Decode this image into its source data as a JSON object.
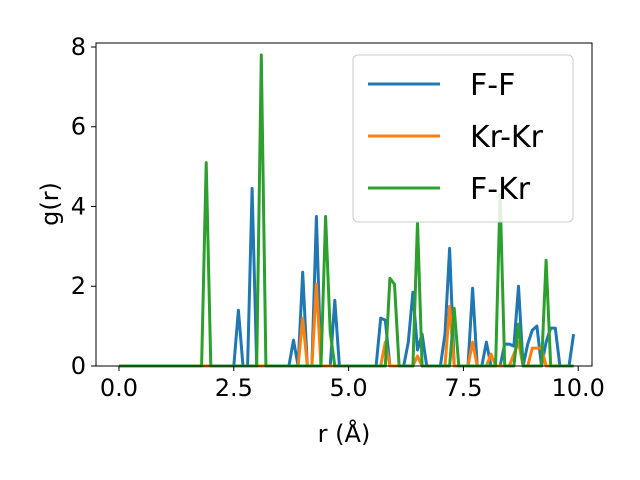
{
  "chart_data": {
    "type": "line",
    "xlabel": "r (Å)",
    "ylabel": "g(r)",
    "xlim": [
      -0.5,
      10.3
    ],
    "ylim": [
      0,
      8.1
    ],
    "xticks": [
      0.0,
      2.5,
      5.0,
      7.5,
      10.0
    ],
    "xtick_labels": [
      "0.0",
      "2.5",
      "5.0",
      "7.5",
      "10.0"
    ],
    "yticks": [
      0,
      2,
      4,
      6,
      8
    ],
    "ytick_labels": [
      "0",
      "2",
      "4",
      "6",
      "8"
    ],
    "grid": false,
    "legend_position": "top-right",
    "series": [
      {
        "name": "F-F",
        "color": "#1f77b4",
        "x": [
          0.0,
          2.5,
          2.6,
          2.7,
          2.8,
          2.9,
          3.0,
          3.7,
          3.8,
          3.9,
          4.0,
          4.1,
          4.2,
          4.3,
          4.4,
          4.5,
          4.6,
          4.7,
          4.8,
          4.9,
          5.6,
          5.7,
          5.8,
          5.9,
          6.2,
          6.3,
          6.4,
          6.5,
          6.6,
          6.7,
          6.8,
          6.9,
          7.0,
          7.1,
          7.2,
          7.3,
          7.4,
          7.5,
          7.6,
          7.7,
          7.8,
          7.9,
          8.0,
          8.1,
          8.2,
          8.3,
          8.4,
          8.5,
          8.6,
          8.7,
          8.8,
          8.9,
          9.0,
          9.1,
          9.2,
          9.3,
          9.4,
          9.5,
          9.6,
          9.7,
          9.8,
          9.9
        ],
        "y": [
          0,
          0,
          1.4,
          0,
          0,
          4.45,
          0,
          0,
          0.65,
          0,
          2.35,
          0,
          0,
          3.75,
          0,
          0,
          0,
          1.65,
          0,
          0,
          0,
          1.2,
          1.15,
          0,
          0,
          0.6,
          1.85,
          0.4,
          0.8,
          0,
          0,
          0,
          0,
          0.8,
          2.95,
          0,
          0,
          0,
          0,
          1.95,
          0,
          0,
          0.6,
          0,
          0,
          0,
          0.55,
          0.55,
          0.5,
          2.0,
          0,
          0.55,
          0.9,
          1.0,
          0,
          0.6,
          0.95,
          0.95,
          0,
          0,
          0,
          0.8
        ]
      },
      {
        "name": "Kr-Kr",
        "color": "#ff7f0e",
        "x": [
          0.0,
          3.9,
          4.0,
          4.1,
          4.2,
          4.3,
          4.4,
          5.7,
          5.8,
          5.9,
          6.4,
          6.5,
          6.6,
          7.1,
          7.2,
          7.3,
          7.6,
          7.7,
          7.8,
          8.0,
          8.1,
          8.2,
          8.5,
          8.6,
          8.7,
          8.8,
          8.9,
          9.0,
          9.1,
          9.2,
          9.3,
          9.9
        ],
        "y": [
          0,
          0,
          1.2,
          0,
          0,
          2.05,
          0,
          0,
          0.6,
          0,
          0,
          0.25,
          0,
          0,
          1.5,
          0,
          0,
          0.6,
          0,
          0,
          0.3,
          0,
          0,
          0.3,
          0.6,
          0,
          0,
          0.45,
          0.45,
          0.45,
          0,
          0
        ]
      },
      {
        "name": "F-Kr",
        "color": "#2ca02c",
        "x": [
          0.0,
          1.8,
          1.9,
          2.0,
          3.0,
          3.1,
          3.2,
          4.3,
          4.4,
          4.5,
          4.6,
          4.7,
          5.8,
          5.9,
          6.0,
          6.1,
          6.2,
          6.3,
          6.4,
          6.5,
          6.6,
          7.2,
          7.3,
          7.4,
          8.2,
          8.3,
          8.4,
          8.6,
          8.7,
          8.8,
          9.2,
          9.3,
          9.4,
          9.9
        ],
        "y": [
          0,
          0,
          5.1,
          0,
          0,
          7.8,
          0,
          0,
          0,
          3.75,
          0.85,
          0,
          0,
          2.2,
          2.05,
          0,
          0,
          0,
          0,
          3.6,
          0,
          0,
          1.45,
          0,
          0,
          4.3,
          0,
          0,
          1.05,
          0,
          0,
          2.65,
          0,
          0
        ]
      }
    ]
  }
}
